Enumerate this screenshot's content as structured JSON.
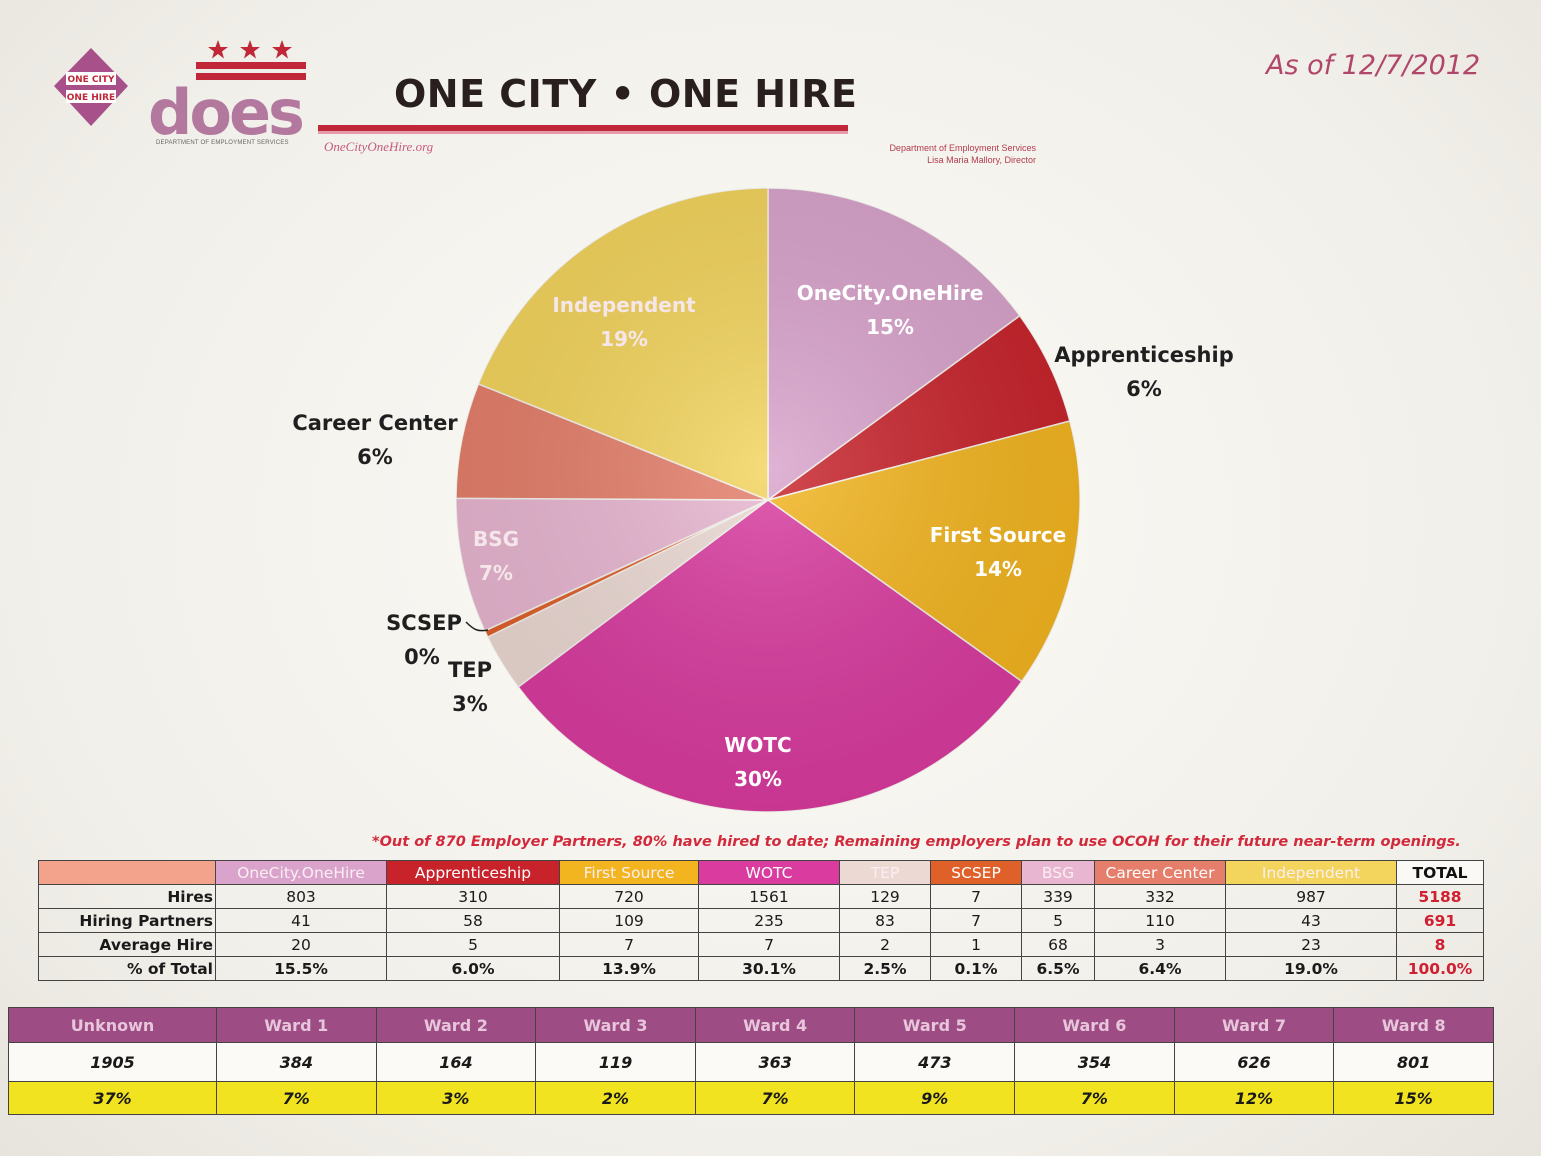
{
  "header": {
    "badge_line1": "ONE CITY",
    "badge_line2": "ONE HIRE",
    "logo_text": "does",
    "logo_subtext": "DEPARTMENT OF EMPLOYMENT SERVICES",
    "website": "OneCityOneHire.org",
    "title": "ONE CITY • ONE HIRE",
    "as_of": "As of 12/7/2012",
    "dept_line1": "Department of Employment Services",
    "dept_line2": "Lisa Maria Mallory, Director"
  },
  "colors": {
    "onecity": "#d9a3cc",
    "apprenticeship": "#c8232b",
    "first_source": "#f3b51f",
    "wotc": "#d93b9f",
    "tep": "#ecd9d3",
    "scsep": "#e0602a",
    "bsg": "#e8b6d1",
    "career_center": "#e57e6a",
    "independent": "#f3d45c"
  },
  "chart_data": {
    "type": "pie",
    "slices": [
      {
        "label": "OneCity.OneHire",
        "value": 15,
        "pct_label": "15%",
        "color_key": "onecity",
        "placement": "inside"
      },
      {
        "label": "Apprenticeship",
        "value": 6,
        "pct_label": "6%",
        "color_key": "apprenticeship",
        "placement": "outside"
      },
      {
        "label": "First Source",
        "value": 14,
        "pct_label": "14%",
        "color_key": "first_source",
        "placement": "inside"
      },
      {
        "label": "WOTC",
        "value": 30,
        "pct_label": "30%",
        "color_key": "wotc",
        "placement": "inside"
      },
      {
        "label": "TEP",
        "value": 3,
        "pct_label": "3%",
        "color_key": "tep",
        "placement": "outside"
      },
      {
        "label": "SCSEP",
        "value": 0,
        "pct_label": "0%",
        "color_key": "scsep",
        "placement": "outside"
      },
      {
        "label": "BSG",
        "value": 7,
        "pct_label": "7%",
        "color_key": "bsg",
        "placement": "inside"
      },
      {
        "label": "Career Center",
        "value": 6,
        "pct_label": "6%",
        "color_key": "career_center",
        "placement": "outside"
      },
      {
        "label": "Independent",
        "value": 19,
        "pct_label": "19%",
        "color_key": "independent",
        "placement": "inside"
      }
    ]
  },
  "note": "*Out of 870 Employer Partners, 80% have hired to date; Remaining employers plan to use OCOH for their future near-term openings.",
  "table": {
    "columns": [
      {
        "label": "OneCity.OneHire",
        "color_key": "onecity"
      },
      {
        "label": "Apprenticeship",
        "color_key": "apprenticeship"
      },
      {
        "label": "First Source",
        "color_key": "first_source"
      },
      {
        "label": "WOTC",
        "color_key": "wotc"
      },
      {
        "label": "TEP",
        "color_key": "tep"
      },
      {
        "label": "SCSEP",
        "color_key": "scsep"
      },
      {
        "label": "BSG",
        "color_key": "bsg"
      },
      {
        "label": "Career Center",
        "color_key": "career_center"
      },
      {
        "label": "Independent",
        "color_key": "independent"
      }
    ],
    "total_label": "TOTAL",
    "rows": [
      {
        "label": "Hires",
        "values": [
          "803",
          "310",
          "720",
          "1561",
          "129",
          "7",
          "339",
          "332",
          "987"
        ],
        "total": "5188"
      },
      {
        "label": "Hiring Partners",
        "values": [
          "41",
          "58",
          "109",
          "235",
          "83",
          "7",
          "5",
          "110",
          "43"
        ],
        "total": "691"
      },
      {
        "label": "Average Hire",
        "values": [
          "20",
          "5",
          "7",
          "7",
          "2",
          "1",
          "68",
          "3",
          "23"
        ],
        "total": "8"
      },
      {
        "label": "% of Total",
        "values": [
          "15.5%",
          "6.0%",
          "13.9%",
          "30.1%",
          "2.5%",
          "0.1%",
          "6.5%",
          "6.4%",
          "19.0%"
        ],
        "total": "100.0%"
      }
    ]
  },
  "wards": {
    "headers": [
      "Unknown",
      "Ward 1",
      "Ward 2",
      "Ward 3",
      "Ward 4",
      "Ward 5",
      "Ward 6",
      "Ward 7",
      "Ward 8"
    ],
    "hires": [
      "1905",
      "384",
      "164",
      "119",
      "363",
      "473",
      "354",
      "626",
      "801"
    ],
    "pct": [
      "37%",
      "7%",
      "3%",
      "2%",
      "7%",
      "9%",
      "7%",
      "12%",
      "15%"
    ]
  }
}
